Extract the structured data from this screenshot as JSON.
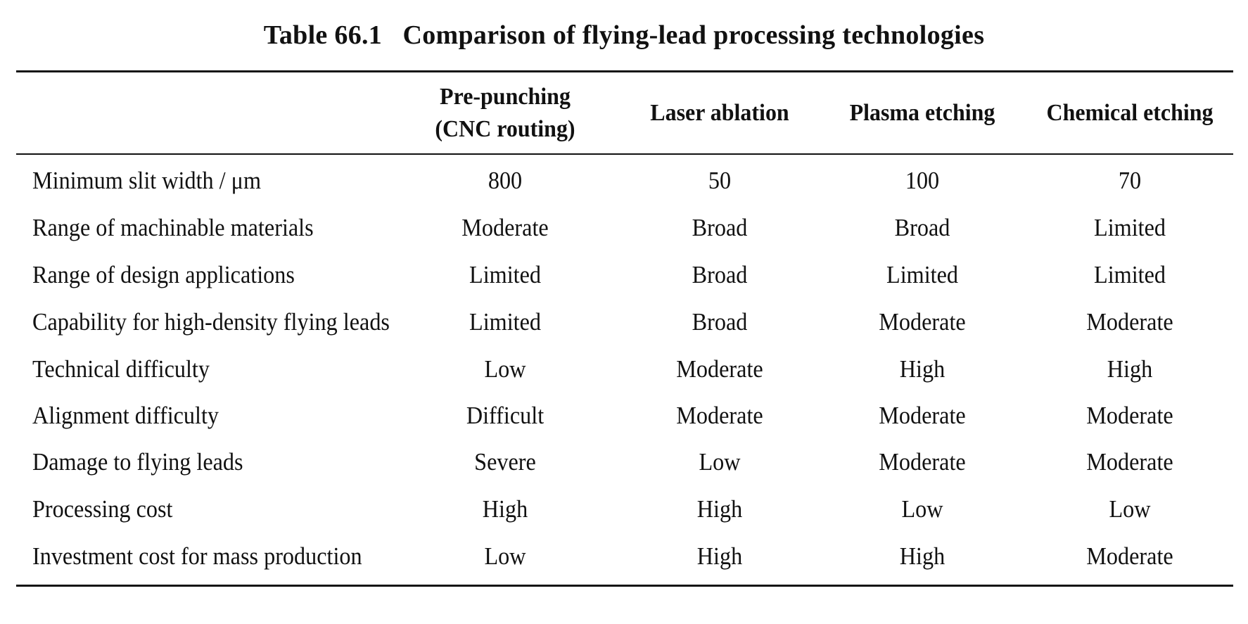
{
  "table": {
    "caption": "Table 66.1   Comparison of flying-lead processing technologies",
    "columns": [
      "Pre-punching\n(CNC routing)",
      "Laser ablation",
      "Plasma etching",
      "Chemical etching"
    ],
    "rows": [
      {
        "label": "Minimum slit width / μm",
        "values": [
          "800",
          "50",
          "100",
          "70"
        ]
      },
      {
        "label": "Range of machinable materials",
        "values": [
          "Moderate",
          "Broad",
          "Broad",
          "Limited"
        ]
      },
      {
        "label": "Range of design applications",
        "values": [
          "Limited",
          "Broad",
          "Limited",
          "Limited"
        ]
      },
      {
        "label": "Capability for high-density flying leads",
        "values": [
          "Limited",
          "Broad",
          "Moderate",
          "Moderate"
        ]
      },
      {
        "label": "Technical difficulty",
        "values": [
          "Low",
          "Moderate",
          "High",
          "High"
        ]
      },
      {
        "label": "Alignment difficulty",
        "values": [
          "Difficult",
          "Moderate",
          "Moderate",
          "Moderate"
        ]
      },
      {
        "label": "Damage to flying leads",
        "values": [
          "Severe",
          "Low",
          "Moderate",
          "Moderate"
        ]
      },
      {
        "label": "Processing cost",
        "values": [
          "High",
          "High",
          "Low",
          "Low"
        ]
      },
      {
        "label": "Investment cost for mass production",
        "values": [
          "Low",
          "High",
          "High",
          "Moderate"
        ]
      }
    ]
  }
}
